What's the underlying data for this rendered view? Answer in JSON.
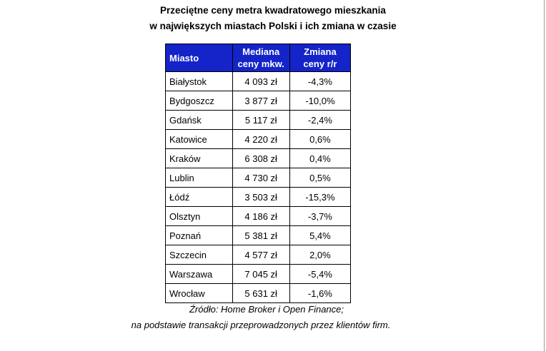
{
  "title": {
    "line1": "Przeciętne ceny metra kwadratowego mieszkania",
    "line2": "w największych miastach Polski i ich zmiana w czasie"
  },
  "table": {
    "headers": {
      "city": "Miasto",
      "price_line1": "Mediana",
      "price_line2": "ceny mkw.",
      "change_line1": "Zmiana",
      "change_line2": "ceny r/r"
    },
    "rows": [
      {
        "city": "Białystok",
        "price": "4 093 zł",
        "change": "-4,3%"
      },
      {
        "city": "Bydgoszcz",
        "price": "3 877 zł",
        "change": "-10,0%"
      },
      {
        "city": "Gdańsk",
        "price": "5 117 zł",
        "change": "-2,4%"
      },
      {
        "city": "Katowice",
        "price": "4 220 zł",
        "change": "0,6%"
      },
      {
        "city": "Kraków",
        "price": "6 308 zł",
        "change": "0,4%"
      },
      {
        "city": "Lublin",
        "price": "4 730 zł",
        "change": "0,5%"
      },
      {
        "city": "Łódź",
        "price": "3 503 zł",
        "change": "-15,3%"
      },
      {
        "city": "Olsztyn",
        "price": "4 186 zł",
        "change": "-3,7%"
      },
      {
        "city": "Poznań",
        "price": "5 381 zł",
        "change": "5,4%"
      },
      {
        "city": "Szczecin",
        "price": "4 577 zł",
        "change": "2,0%"
      },
      {
        "city": "Warszawa",
        "price": "7 045 zł",
        "change": "-5,4%"
      },
      {
        "city": "Wrocław",
        "price": "5 631 zł",
        "change": "-1,6%"
      }
    ]
  },
  "source": {
    "line1": "Źródło: Home Broker i Open Finance;",
    "line2": "na podstawie transakcji przeprowadzonych przez klientów firm."
  },
  "colors": {
    "header_background": "#1424c8",
    "header_text": "#ffffff"
  }
}
